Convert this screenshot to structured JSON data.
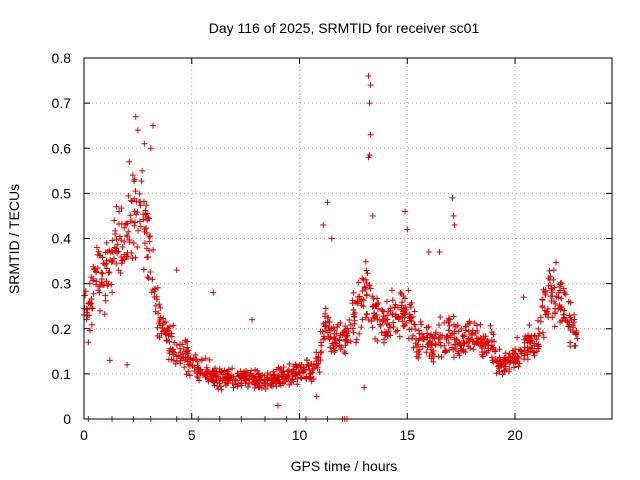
{
  "chart_data": {
    "type": "scatter",
    "title": "Day 116 of 2025, SRMTID for receiver sc01",
    "xlabel": "GPS time / hours",
    "ylabel": "SRMTID / TECUs",
    "xlim": [
      0,
      24.5
    ],
    "ylim": [
      0,
      0.8
    ],
    "x_ticks": [
      0,
      5,
      10,
      15,
      20
    ],
    "y_ticks": [
      0,
      0.1,
      0.2,
      0.3,
      0.4,
      0.5,
      0.6,
      0.7,
      0.8
    ],
    "x_tick_labels": [
      "0",
      "5",
      "10",
      "15",
      "20"
    ],
    "y_tick_labels": [
      "0",
      "0.1",
      "0.2",
      "0.3",
      "0.4",
      "0.5",
      "0.6",
      "0.7",
      "0.8"
    ],
    "grid": true,
    "marker": "+",
    "series": [
      {
        "name": "sc01",
        "color": "#dd0000",
        "trend": [
          [
            0.0,
            0.27
          ],
          [
            0.2,
            0.22
          ],
          [
            0.4,
            0.3
          ],
          [
            0.6,
            0.33
          ],
          [
            0.9,
            0.3
          ],
          [
            1.3,
            0.35
          ],
          [
            1.6,
            0.38
          ],
          [
            2.0,
            0.4
          ],
          [
            2.3,
            0.43
          ],
          [
            2.6,
            0.47
          ],
          [
            2.9,
            0.42
          ],
          [
            3.2,
            0.3
          ],
          [
            3.5,
            0.22
          ],
          [
            3.9,
            0.18
          ],
          [
            4.3,
            0.15
          ],
          [
            4.8,
            0.14
          ],
          [
            5.3,
            0.11
          ],
          [
            5.8,
            0.1
          ],
          [
            6.5,
            0.09
          ],
          [
            7.0,
            0.09
          ],
          [
            7.5,
            0.09
          ],
          [
            8.0,
            0.09
          ],
          [
            8.5,
            0.08
          ],
          [
            9.0,
            0.09
          ],
          [
            9.5,
            0.1
          ],
          [
            10.0,
            0.1
          ],
          [
            10.5,
            0.11
          ],
          [
            10.9,
            0.13
          ],
          [
            11.2,
            0.22
          ],
          [
            11.6,
            0.18
          ],
          [
            12.0,
            0.17
          ],
          [
            12.4,
            0.21
          ],
          [
            12.8,
            0.24
          ],
          [
            13.1,
            0.28
          ],
          [
            13.5,
            0.24
          ],
          [
            14.0,
            0.21
          ],
          [
            14.5,
            0.23
          ],
          [
            15.0,
            0.24
          ],
          [
            15.5,
            0.17
          ],
          [
            16.0,
            0.18
          ],
          [
            16.5,
            0.17
          ],
          [
            17.0,
            0.2
          ],
          [
            17.5,
            0.17
          ],
          [
            18.0,
            0.19
          ],
          [
            18.5,
            0.17
          ],
          [
            19.0,
            0.16
          ],
          [
            19.4,
            0.11
          ],
          [
            19.8,
            0.13
          ],
          [
            20.2,
            0.14
          ],
          [
            20.6,
            0.16
          ],
          [
            21.0,
            0.16
          ],
          [
            21.3,
            0.24
          ],
          [
            21.7,
            0.28
          ],
          [
            22.1,
            0.27
          ],
          [
            22.5,
            0.21
          ],
          [
            22.9,
            0.18
          ]
        ],
        "outliers": [
          [
            2.4,
            0.67
          ],
          [
            2.5,
            0.64
          ],
          [
            2.8,
            0.61
          ],
          [
            3.2,
            0.65
          ],
          [
            3.1,
            0.6
          ],
          [
            2.1,
            0.57
          ],
          [
            2.7,
            0.55
          ],
          [
            13.2,
            0.76
          ],
          [
            13.3,
            0.74
          ],
          [
            13.25,
            0.7
          ],
          [
            13.3,
            0.63
          ],
          [
            13.2,
            0.58
          ],
          [
            13.25,
            0.585
          ],
          [
            11.3,
            0.48
          ],
          [
            11.1,
            0.43
          ],
          [
            11.5,
            0.4
          ],
          [
            13.4,
            0.45
          ],
          [
            14.9,
            0.46
          ],
          [
            15.0,
            0.42
          ],
          [
            17.1,
            0.49
          ],
          [
            17.15,
            0.45
          ],
          [
            17.2,
            0.43
          ],
          [
            16.0,
            0.37
          ],
          [
            16.5,
            0.37
          ],
          [
            21.8,
            0.33
          ],
          [
            20.4,
            0.27
          ],
          [
            0.6,
            0.38
          ],
          [
            1.4,
            0.44
          ],
          [
            4.3,
            0.33
          ],
          [
            6.0,
            0.28
          ],
          [
            7.8,
            0.22
          ],
          [
            13.0,
            0.07
          ],
          [
            10.8,
            0.05
          ],
          [
            9.0,
            0.03
          ],
          [
            1.2,
            0.13
          ],
          [
            2.0,
            0.12
          ],
          [
            0.2,
            0.17
          ]
        ],
        "zero_points": [
          0.2,
          1.3,
          2.3,
          3.1,
          4.3,
          5.3,
          6.3,
          7.3,
          8.4,
          9.4,
          10.3,
          11.3,
          12.0,
          12.1,
          12.2
        ]
      }
    ]
  }
}
